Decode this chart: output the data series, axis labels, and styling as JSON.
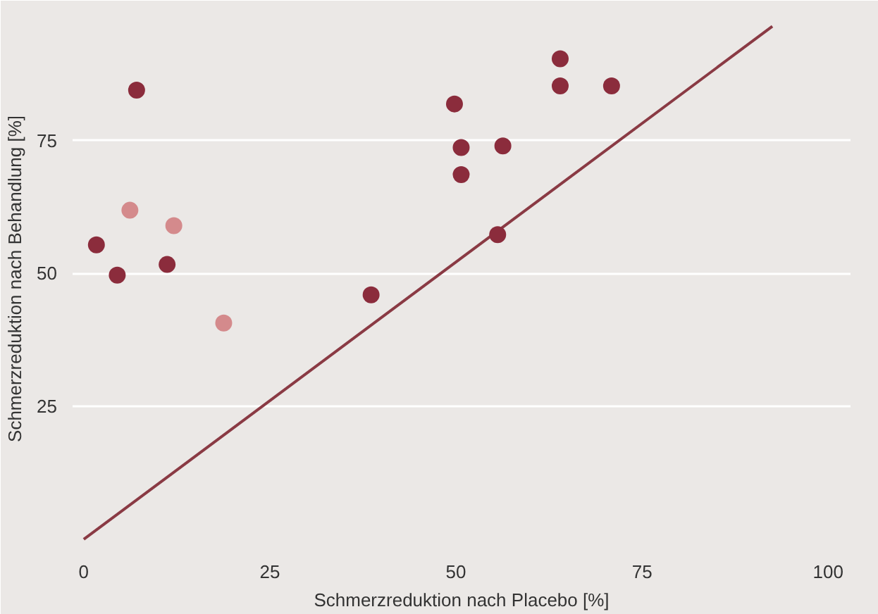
{
  "chart_data": {
    "type": "scatter",
    "xlabel": "Schmerzreduktion nach Placebo [%]",
    "ylabel": "Schmerzreduktion nach Behandlung [%]",
    "xlim": [
      -1.5,
      103
    ],
    "ylim": [
      -2,
      100
    ],
    "xticks": [
      0,
      25,
      50,
      75,
      100
    ],
    "yticks": [
      25,
      50,
      75
    ],
    "grid": "y",
    "series": [
      {
        "marker": "circle",
        "color": "#8b2c3c",
        "x": [
          7.1,
          1.7,
          4.5,
          11.2,
          38.6,
          49.8,
          50.7,
          50.7,
          56.3,
          55.6,
          64.0,
          64.0,
          70.9
        ],
        "values": [
          84.5,
          55.4,
          49.7,
          51.7,
          46.0,
          81.9,
          73.7,
          68.6,
          74.0,
          57.3,
          90.4,
          85.3,
          85.3
        ]
      },
      {
        "marker": "circle",
        "color": "#d48a8c",
        "x": [
          6.2,
          12.1,
          18.8
        ],
        "values": [
          61.9,
          59.0,
          40.7
        ]
      },
      {
        "type": "line",
        "color": "#8a3a44",
        "x": [
          0,
          92.5
        ],
        "values": [
          0,
          96.5
        ]
      }
    ]
  }
}
